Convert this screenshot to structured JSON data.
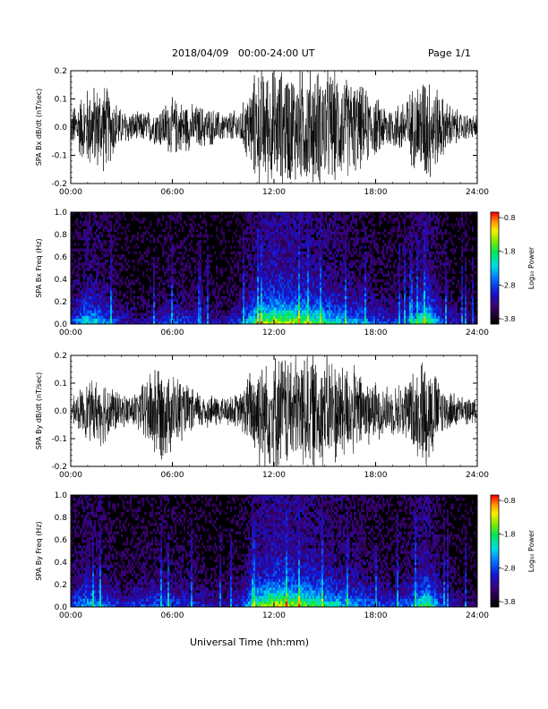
{
  "header": {
    "date_range": "2018/04/09   00:00-24:00 UT",
    "page": "Page 1/1"
  },
  "footer": {
    "xlabel": "Universal Time (hh:mm)"
  },
  "chart_data": [
    {
      "type": "line",
      "ylabel": "SPA Bx dB/dt (nT/sec)",
      "xlim": [
        0,
        24
      ],
      "ylim": [
        -0.2,
        0.2
      ],
      "xticks": [
        "00:00",
        "06:00",
        "12:00",
        "18:00",
        "24:00"
      ],
      "yticks": [
        "-0.2",
        "-0.1",
        "0.0",
        "0.1",
        "0.2"
      ],
      "x_hours": [
        0,
        1,
        2,
        3,
        4,
        5,
        6,
        7,
        8,
        9,
        10,
        11,
        12,
        13,
        14,
        15,
        16,
        17,
        18,
        19,
        20,
        21,
        22,
        23,
        24
      ],
      "amplitude": [
        0.06,
        0.14,
        0.15,
        0.06,
        0.05,
        0.06,
        0.1,
        0.08,
        0.07,
        0.05,
        0.06,
        0.2,
        0.2,
        0.2,
        0.2,
        0.2,
        0.18,
        0.15,
        0.1,
        0.07,
        0.12,
        0.2,
        0.1,
        0.05,
        0.04
      ]
    },
    {
      "type": "heatmap",
      "ylabel": "SPA Bx Freq (Hz)",
      "xlim": [
        0,
        24
      ],
      "ylim": [
        0,
        1
      ],
      "xticks": [
        "00:00",
        "06:00",
        "12:00",
        "18:00",
        "24:00"
      ],
      "yticks": [
        "0.0",
        "0.2",
        "0.4",
        "0.6",
        "0.8",
        "1.0"
      ],
      "colorbar_label": "Log₁₀ Power",
      "colorbar_ticks": [
        "-0.8",
        "-1.8",
        "-2.8",
        "-3.8"
      ],
      "colorbar_range": [
        -3.8,
        -0.8
      ],
      "x_hours": [
        0,
        1,
        2,
        3,
        4,
        5,
        6,
        7,
        8,
        9,
        10,
        11,
        12,
        13,
        14,
        15,
        16,
        17,
        18,
        19,
        20,
        21,
        22,
        23,
        24
      ],
      "activity": [
        0.3,
        0.55,
        0.45,
        0.25,
        0.2,
        0.22,
        0.35,
        0.3,
        0.25,
        0.2,
        0.3,
        0.65,
        0.8,
        0.75,
        0.7,
        0.6,
        0.5,
        0.45,
        0.35,
        0.3,
        0.4,
        0.7,
        0.3,
        0.2,
        0.15
      ]
    },
    {
      "type": "line",
      "ylabel": "SPA By dB/dt (nT/sec)",
      "xlim": [
        0,
        24
      ],
      "ylim": [
        -0.2,
        0.2
      ],
      "xticks": [
        "00:00",
        "06:00",
        "12:00",
        "18:00",
        "24:00"
      ],
      "yticks": [
        "-0.2",
        "-0.1",
        "0.0",
        "0.1",
        "0.2"
      ],
      "x_hours": [
        0,
        1,
        2,
        3,
        4,
        5,
        6,
        7,
        8,
        9,
        10,
        11,
        12,
        13,
        14,
        15,
        16,
        17,
        18,
        19,
        20,
        21,
        22,
        23,
        24
      ],
      "amplitude": [
        0.04,
        0.1,
        0.12,
        0.05,
        0.07,
        0.18,
        0.14,
        0.08,
        0.06,
        0.05,
        0.06,
        0.2,
        0.2,
        0.2,
        0.2,
        0.2,
        0.18,
        0.14,
        0.1,
        0.08,
        0.12,
        0.2,
        0.08,
        0.05,
        0.04
      ]
    },
    {
      "type": "heatmap",
      "ylabel": "SPA By Freq (Hz)",
      "xlim": [
        0,
        24
      ],
      "ylim": [
        0,
        1
      ],
      "xticks": [
        "00:00",
        "06:00",
        "12:00",
        "18:00",
        "24:00"
      ],
      "yticks": [
        "0.0",
        "0.2",
        "0.4",
        "0.6",
        "0.8",
        "1.0"
      ],
      "colorbar_label": "Log₁₀ Power",
      "colorbar_ticks": [
        "-0.8",
        "-1.8",
        "-2.8",
        "-3.8"
      ],
      "colorbar_range": [
        -3.8,
        -0.8
      ],
      "x_hours": [
        0,
        1,
        2,
        3,
        4,
        5,
        6,
        7,
        8,
        9,
        10,
        11,
        12,
        13,
        14,
        15,
        16,
        17,
        18,
        19,
        20,
        21,
        22,
        23,
        24
      ],
      "activity": [
        0.3,
        0.5,
        0.4,
        0.25,
        0.3,
        0.35,
        0.35,
        0.3,
        0.25,
        0.2,
        0.3,
        0.65,
        0.8,
        0.75,
        0.7,
        0.6,
        0.5,
        0.45,
        0.35,
        0.3,
        0.4,
        0.7,
        0.3,
        0.2,
        0.15
      ]
    }
  ]
}
